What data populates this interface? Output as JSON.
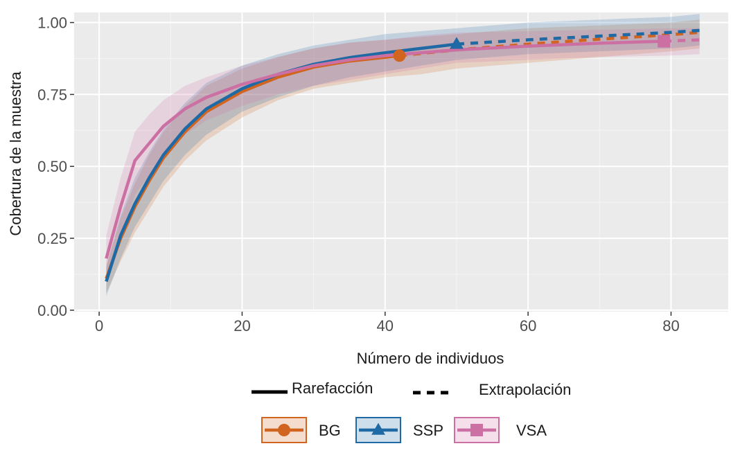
{
  "chart_data": {
    "type": "line",
    "xlabel": "Número de individuos",
    "ylabel": "Cobertura de la muestra",
    "xlim": [
      -3.5,
      88
    ],
    "ylim": [
      -0.005,
      1.035
    ],
    "x_ticks": [
      0,
      20,
      40,
      60,
      80
    ],
    "x_tick_labels": [
      "0",
      "20",
      "40",
      "60",
      "80"
    ],
    "y_ticks": [
      0,
      0.25,
      0.5,
      0.75,
      1
    ],
    "y_tick_labels": [
      "0.00",
      "0.25",
      "0.50",
      "0.75",
      "1.00"
    ],
    "grid": true,
    "linetype_legend": {
      "position": "bottom",
      "items": [
        {
          "label": "Rarefacción",
          "style": "solid"
        },
        {
          "label": "Extrapolación",
          "style": "dashed"
        }
      ]
    },
    "color_legend": {
      "position": "bottom"
    },
    "series": [
      {
        "name": "BG",
        "color": "#d1651f",
        "marker": "circle",
        "observed": {
          "x": 42,
          "y": 0.885
        },
        "rarefaction": {
          "x": [
            1,
            3,
            5,
            7,
            9,
            12,
            15,
            20,
            25,
            30,
            35,
            40,
            42
          ],
          "y": [
            0.11,
            0.25,
            0.36,
            0.45,
            0.53,
            0.62,
            0.69,
            0.76,
            0.81,
            0.845,
            0.866,
            0.879,
            0.885
          ]
        },
        "extrapolation": {
          "x": [
            42,
            50,
            60,
            70,
            80,
            84
          ],
          "y": [
            0.885,
            0.905,
            0.925,
            0.942,
            0.958,
            0.966
          ]
        },
        "ci_lower": [
          0.06,
          0.17,
          0.27,
          0.35,
          0.43,
          0.52,
          0.59,
          0.67,
          0.73,
          0.77,
          0.79,
          0.81,
          0.82,
          0.84,
          0.86,
          0.88,
          0.9,
          0.91
        ],
        "ci_upper": [
          0.16,
          0.32,
          0.44,
          0.54,
          0.62,
          0.71,
          0.78,
          0.84,
          0.88,
          0.91,
          0.93,
          0.94,
          0.95,
          0.96,
          0.98,
          0.99,
          1.0,
          1.01
        ]
      },
      {
        "name": "SSP",
        "color": "#1f6aa5",
        "marker": "triangle",
        "observed": {
          "x": 50,
          "y": 0.925
        },
        "rarefaction": {
          "x": [
            1,
            3,
            5,
            7,
            9,
            12,
            15,
            20,
            25,
            30,
            35,
            40,
            45,
            50
          ],
          "y": [
            0.1,
            0.26,
            0.37,
            0.46,
            0.54,
            0.63,
            0.7,
            0.77,
            0.82,
            0.855,
            0.878,
            0.895,
            0.91,
            0.925
          ]
        },
        "extrapolation": {
          "x": [
            50,
            60,
            70,
            80,
            84
          ],
          "y": [
            0.925,
            0.94,
            0.953,
            0.966,
            0.973
          ]
        },
        "ci_lower": [
          0.05,
          0.18,
          0.29,
          0.37,
          0.45,
          0.54,
          0.61,
          0.69,
          0.74,
          0.78,
          0.81,
          0.83,
          0.85,
          0.87,
          0.89,
          0.9,
          0.91,
          0.92
        ],
        "ci_upper": [
          0.15,
          0.33,
          0.46,
          0.55,
          0.63,
          0.72,
          0.79,
          0.85,
          0.89,
          0.92,
          0.94,
          0.96,
          0.97,
          0.98,
          1.0,
          1.01,
          1.02,
          1.03
        ]
      },
      {
        "name": "VSA",
        "color": "#cc6fa3",
        "marker": "square",
        "observed": {
          "x": 79,
          "y": 0.935
        },
        "rarefaction": {
          "x": [
            1,
            3,
            5,
            7,
            9,
            12,
            15,
            20,
            25,
            30,
            35,
            40,
            50,
            60,
            70,
            79
          ],
          "y": [
            0.18,
            0.36,
            0.52,
            0.58,
            0.64,
            0.7,
            0.74,
            0.785,
            0.82,
            0.85,
            0.87,
            0.885,
            0.905,
            0.918,
            0.928,
            0.935
          ]
        },
        "extrapolation": {
          "x": [
            79,
            82,
            84
          ],
          "y": [
            0.935,
            0.938,
            0.94
          ]
        },
        "ci_lower": [
          0.1,
          0.25,
          0.4,
          0.47,
          0.54,
          0.61,
          0.66,
          0.71,
          0.75,
          0.78,
          0.8,
          0.82,
          0.84,
          0.86,
          0.87,
          0.88,
          0.885,
          0.89
        ],
        "ci_upper": [
          0.26,
          0.46,
          0.62,
          0.68,
          0.73,
          0.78,
          0.81,
          0.85,
          0.88,
          0.91,
          0.93,
          0.94,
          0.955,
          0.965,
          0.97,
          0.975,
          0.98,
          0.98
        ]
      }
    ],
    "ci_x": [
      1,
      3,
      5,
      7,
      9,
      12,
      15,
      20,
      25,
      30,
      35,
      40,
      45,
      50,
      60,
      70,
      80,
      84
    ]
  }
}
